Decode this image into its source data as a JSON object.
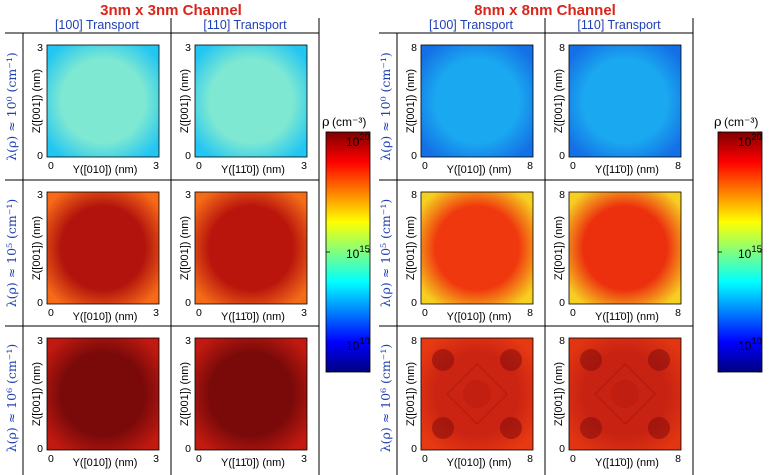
{
  "groups": [
    {
      "title": "3nm x 3nm Channel",
      "columns": [
        "[100] Transport",
        "[110] Transport"
      ],
      "rows": [
        "λ(ρ) ≈ 10⁰ (cm⁻¹)",
        "λ(ρ) ≈ 10⁵ (cm⁻¹)",
        "λ(ρ) ≈ 10⁶ (cm⁻¹)"
      ],
      "x_labels": [
        "Y([010]) (nm)",
        "Y([11̄0]) (nm)"
      ],
      "y_label": "Z([001]) (nm)",
      "axis_ticks": {
        "min": "0",
        "max": "3"
      },
      "panels": [
        {
          "center": "#7ee8d2",
          "edge": "#22c6f2",
          "pattern": "smooth"
        },
        {
          "center": "#7ee8d2",
          "edge": "#22c6f2",
          "pattern": "smooth"
        },
        {
          "center": "#b2130c",
          "edge": "#f76a18",
          "pattern": "smooth"
        },
        {
          "center": "#b9150c",
          "edge": "#f46c18",
          "pattern": "smooth"
        },
        {
          "center": "#7a0a0a",
          "edge": "#c21a10",
          "pattern": "smooth"
        },
        {
          "center": "#7a0a0a",
          "edge": "#c21a10",
          "pattern": "smooth"
        }
      ]
    },
    {
      "title": "8nm x 8nm Channel",
      "columns": [
        "[100] Transport",
        "[110] Transport"
      ],
      "rows": [
        "λ(ρ) ≈ 10⁰ (cm⁻¹)",
        "λ(ρ) ≈ 10⁵ (cm⁻¹)",
        "λ(ρ) ≈ 10⁶ (cm⁻¹)"
      ],
      "x_labels": [
        "Y([010]) (nm)",
        "Y([11̄0]) (nm)"
      ],
      "y_label": "Z([001]) (nm)",
      "axis_ticks": {
        "min": "0",
        "max": "8"
      },
      "panels": [
        {
          "center": "#1aa8f0",
          "edge": "#1470e6",
          "pattern": "smooth"
        },
        {
          "center": "#1aa8f0",
          "edge": "#1470e6",
          "pattern": "smooth"
        },
        {
          "center": "#f0380e",
          "edge": "#f6d020",
          "pattern": "smooth"
        },
        {
          "center": "#ec300e",
          "edge": "#f7ce22",
          "pattern": "smooth"
        },
        {
          "center": "#cc2412",
          "edge": "#e83a12",
          "pattern": "lobes"
        },
        {
          "center": "#c82212",
          "edge": "#e23612",
          "pattern": "lobes"
        }
      ]
    }
  ],
  "colorbar": {
    "label": "ρ",
    "unit": "(cm⁻³)",
    "ticks": [
      {
        "base": "10",
        "exp": "20",
        "level": 1.0
      },
      {
        "base": "10",
        "exp": "15",
        "level": 0.5
      },
      {
        "base": "10",
        "exp": "10",
        "level": 0.0
      }
    ],
    "colors": [
      "#00007f",
      "#0000ff",
      "#0080ff",
      "#00ffff",
      "#80ff80",
      "#ffff00",
      "#ff8000",
      "#ff0000",
      "#7f0000"
    ]
  }
}
